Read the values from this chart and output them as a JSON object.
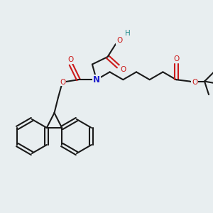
{
  "bg_color": "#e8eef0",
  "bond_color": "#1a1a1a",
  "N_color": "#1a1acc",
  "O_color": "#cc1a1a",
  "H_color": "#1a8888",
  "figsize": [
    3.0,
    3.0
  ],
  "dpi": 100,
  "xlim": [
    0,
    10
  ],
  "ylim": [
    0,
    10
  ]
}
